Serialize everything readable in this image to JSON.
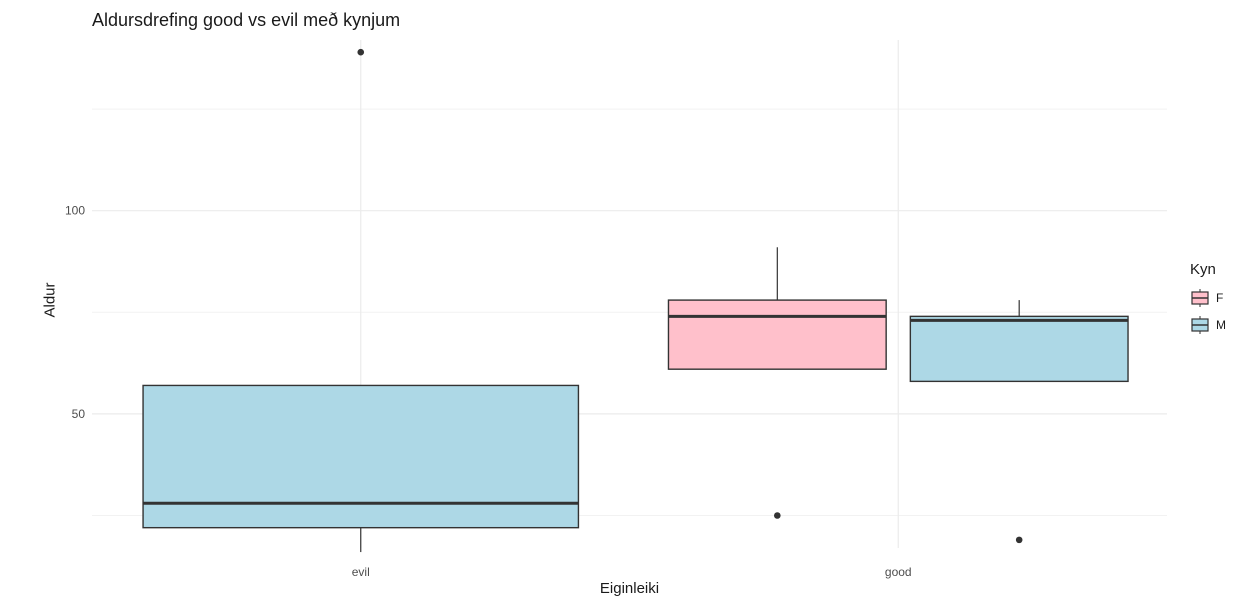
{
  "chart_data": {
    "type": "boxplot",
    "title": "Aldursdrefing good vs evil með kynjum",
    "xlabel": "Eiginleiki",
    "ylabel": "Aldur",
    "categories": [
      "evil",
      "good"
    ],
    "y_ticks": [
      50,
      100
    ],
    "ylim": [
      17,
      142
    ],
    "grid": true,
    "legend": {
      "title": "Kyn",
      "position": "right",
      "entries": [
        {
          "label": "F",
          "color": "#ffc0cb"
        },
        {
          "label": "M",
          "color": "#add8e6"
        }
      ]
    },
    "boxes": [
      {
        "category": "evil",
        "group": "M",
        "whisker_low": 16,
        "q1": 22,
        "median": 28,
        "q3": 57,
        "whisker_high": 57,
        "outliers": [
          139
        ]
      },
      {
        "category": "good",
        "group": "F",
        "whisker_low": 61,
        "q1": 61,
        "median": 74,
        "q3": 78,
        "whisker_high": 91,
        "outliers": [
          25
        ]
      },
      {
        "category": "good",
        "group": "M",
        "whisker_low": 58,
        "q1": 58,
        "median": 73,
        "q3": 74,
        "whisker_high": 78,
        "outliers": [
          19
        ]
      }
    ]
  }
}
